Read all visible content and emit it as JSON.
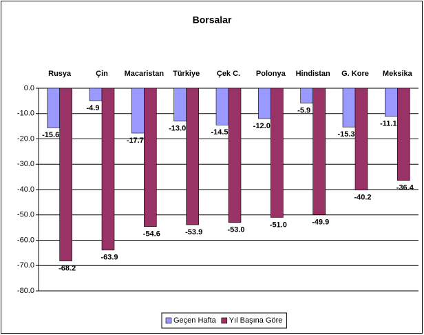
{
  "chart_data": {
    "type": "bar",
    "title": "Borsalar",
    "categories": [
      "Rusya",
      "Çin",
      "Macaristan",
      "Türkiye",
      "Çek C.",
      "Polonya",
      "Hindistan",
      "G. Kore",
      "Meksika"
    ],
    "series": [
      {
        "name": "Geçen Hafta",
        "color": "#9999ff",
        "values": [
          -15.6,
          -4.9,
          -17.7,
          -13.0,
          -14.5,
          -12.0,
          -5.9,
          -15.3,
          -11.1
        ],
        "value_labels": [
          "-15.6",
          "-4.9",
          "-17.7",
          "-13.0",
          "-14.5",
          "-12.0",
          "-5.9",
          "-15.3",
          "-11.1"
        ]
      },
      {
        "name": "Yıl Başına Göre",
        "color": "#993366",
        "values": [
          -68.2,
          -63.9,
          -54.6,
          -53.9,
          -53.0,
          -51.0,
          -49.9,
          -40.2,
          -36.4
        ],
        "value_labels": [
          "-68.2",
          "-63.9",
          "-54.6",
          "-53.9",
          "-53.0",
          "-51.0",
          "-49.9",
          "-40.2",
          "-36.4"
        ]
      }
    ],
    "ylim": [
      -80,
      0
    ],
    "yticks": [
      {
        "value": 0,
        "label": "0.0"
      },
      {
        "value": -10,
        "label": "-10.0"
      },
      {
        "value": -20,
        "label": "-20.0"
      },
      {
        "value": -30,
        "label": "-30.0"
      },
      {
        "value": -40,
        "label": "-40.0"
      },
      {
        "value": -50,
        "label": "-50.0"
      },
      {
        "value": -60,
        "label": "-60.0"
      },
      {
        "value": -70,
        "label": "-70.0"
      },
      {
        "value": -80,
        "label": "-80.0"
      }
    ],
    "grid": true,
    "legend": "bottom"
  }
}
